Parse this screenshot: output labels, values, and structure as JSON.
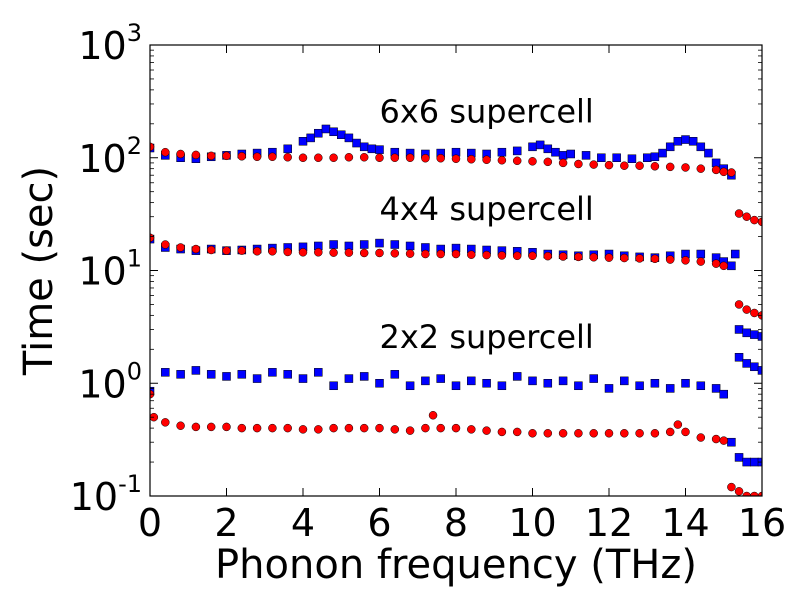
{
  "chart_data": {
    "type": "scatter",
    "title": "",
    "xlabel": "Phonon frequency (THz)",
    "ylabel": "Time (sec)",
    "xlim": [
      0,
      16
    ],
    "ylim": [
      0.1,
      1000
    ],
    "yscale": "log",
    "x_ticks": [
      0,
      2,
      4,
      6,
      8,
      10,
      12,
      14,
      16
    ],
    "x_tick_labels": [
      "0",
      "2",
      "4",
      "6",
      "8",
      "10",
      "12",
      "14",
      "16"
    ],
    "y_ticks": [
      0.1,
      1,
      10,
      100,
      1000
    ],
    "y_tick_labels": [
      {
        "base": "10",
        "exp": "-1"
      },
      {
        "base": "10",
        "exp": "0"
      },
      {
        "base": "10",
        "exp": "1"
      },
      {
        "base": "10",
        "exp": "2"
      },
      {
        "base": "10",
        "exp": "3"
      }
    ],
    "colors": {
      "blue": "#0000ff",
      "red": "#ff0000"
    },
    "annotations": [
      {
        "text": "6x6 supercell",
        "x": 6.0,
        "y": 160
      },
      {
        "text": "4x4 supercell",
        "x": 6.0,
        "y": 22
      },
      {
        "text": "2x2 supercell",
        "x": 6.0,
        "y": 1.6
      }
    ],
    "series": [
      {
        "name": "6x6 supercell (blue squares)",
        "color": "blue",
        "marker": "square",
        "x": [
          0.0,
          0.4,
          0.8,
          1.2,
          1.6,
          2.0,
          2.4,
          2.8,
          3.2,
          3.6,
          4.0,
          4.2,
          4.4,
          4.6,
          4.8,
          5.0,
          5.2,
          5.4,
          5.6,
          5.8,
          6.0,
          6.4,
          6.8,
          7.2,
          7.6,
          8.0,
          8.4,
          8.8,
          9.2,
          9.6,
          10.0,
          10.2,
          10.4,
          10.6,
          10.8,
          11.0,
          11.4,
          11.8,
          12.2,
          12.6,
          13.0,
          13.2,
          13.4,
          13.6,
          13.8,
          14.0,
          14.2,
          14.4,
          14.6,
          14.8,
          15.0,
          15.2,
          15.3,
          15.4,
          15.6,
          15.8,
          16.0
        ],
        "y": [
          122,
          105,
          100,
          98,
          102,
          105,
          108,
          110,
          112,
          120,
          140,
          150,
          165,
          180,
          170,
          160,
          150,
          135,
          125,
          120,
          118,
          112,
          110,
          108,
          110,
          112,
          110,
          108,
          112,
          115,
          125,
          130,
          120,
          112,
          105,
          108,
          105,
          100,
          100,
          98,
          100,
          102,
          110,
          125,
          140,
          145,
          140,
          125,
          110,
          90,
          80,
          70,
          14,
          1.7,
          1.5,
          1.4,
          1.3
        ]
      },
      {
        "name": "6x6 supercell (red circles)",
        "color": "red",
        "marker": "circle",
        "x": [
          0.0,
          0.4,
          0.8,
          1.2,
          1.6,
          2.0,
          2.4,
          2.8,
          3.2,
          3.6,
          4.0,
          4.4,
          4.8,
          5.2,
          5.6,
          6.0,
          6.4,
          6.8,
          7.2,
          7.6,
          8.0,
          8.4,
          8.8,
          9.2,
          9.6,
          10.0,
          10.4,
          10.8,
          11.2,
          11.6,
          12.0,
          12.4,
          12.8,
          13.2,
          13.6,
          14.0,
          14.4,
          14.8,
          15.0,
          15.2
        ],
        "y": [
          125,
          112,
          108,
          106,
          104,
          104,
          103,
          102,
          102,
          101,
          100,
          100,
          100,
          101,
          101,
          100,
          100,
          100,
          99,
          99,
          98,
          97,
          96,
          95,
          94,
          93,
          92,
          90,
          88,
          87,
          86,
          85,
          85,
          84,
          83,
          82,
          80,
          78,
          75,
          74
        ]
      },
      {
        "name": "4x4 supercell (blue squares)",
        "color": "blue",
        "marker": "square",
        "x": [
          0.0,
          0.4,
          0.8,
          1.2,
          1.6,
          2.0,
          2.4,
          2.8,
          3.2,
          3.6,
          4.0,
          4.4,
          4.8,
          5.2,
          5.6,
          6.0,
          6.4,
          6.8,
          7.2,
          7.6,
          8.0,
          8.4,
          8.8,
          9.2,
          9.6,
          10.0,
          10.4,
          10.8,
          11.2,
          11.6,
          12.0,
          12.4,
          12.8,
          13.2,
          13.6,
          14.0,
          14.4,
          14.8,
          15.0,
          15.2,
          15.4,
          15.6,
          15.8,
          16.0
        ],
        "y": [
          19,
          16,
          15.5,
          15,
          15.5,
          15,
          15.2,
          15.5,
          15.8,
          16,
          16.2,
          16.5,
          17,
          16.5,
          17,
          17.5,
          17,
          16.5,
          16,
          15.5,
          15.8,
          15.5,
          15.2,
          15,
          14.8,
          14.5,
          14,
          13.8,
          13.5,
          13.8,
          14,
          13.5,
          13.2,
          13,
          13.5,
          14,
          14,
          13,
          12,
          11,
          0.22,
          0.2,
          0.2,
          0.2
        ]
      },
      {
        "name": "4x4 supercell (red circles)",
        "color": "red",
        "marker": "circle",
        "x": [
          0.0,
          0.4,
          0.8,
          1.2,
          1.6,
          2.0,
          2.4,
          2.8,
          3.2,
          3.6,
          4.0,
          4.4,
          4.8,
          5.2,
          5.6,
          6.0,
          6.4,
          6.8,
          7.2,
          7.6,
          8.0,
          8.4,
          8.8,
          9.2,
          9.6,
          10.0,
          10.4,
          10.8,
          11.2,
          11.6,
          12.0,
          12.4,
          12.8,
          13.2,
          13.6,
          14.0,
          14.4,
          14.8,
          15.0
        ],
        "y": [
          19.5,
          17,
          16,
          15.5,
          15.2,
          15,
          15,
          14.8,
          14.8,
          14.6,
          14.5,
          14.5,
          14.4,
          14.4,
          14.3,
          14.3,
          14.2,
          14.1,
          14,
          14,
          14,
          13.8,
          13.7,
          13.6,
          13.5,
          13.5,
          13.4,
          13.3,
          13.2,
          13.1,
          13,
          12.9,
          12.8,
          12.7,
          12.5,
          12.3,
          12,
          11.5,
          11
        ]
      },
      {
        "name": "2x2 supercell (blue squares)",
        "color": "blue",
        "marker": "square",
        "x": [
          0.0,
          0.4,
          0.8,
          1.2,
          1.6,
          2.0,
          2.4,
          2.8,
          3.2,
          3.6,
          4.0,
          4.4,
          4.8,
          5.2,
          5.6,
          6.0,
          6.4,
          6.8,
          7.2,
          7.6,
          8.0,
          8.4,
          8.8,
          9.2,
          9.6,
          10.0,
          10.4,
          10.8,
          11.2,
          11.6,
          12.0,
          12.4,
          12.8,
          13.2,
          13.6,
          14.0,
          14.4,
          14.8,
          15.0,
          15.2,
          15.4,
          15.6,
          15.8,
          16.0
        ],
        "y": [
          0.85,
          1.25,
          1.2,
          1.3,
          1.2,
          1.15,
          1.2,
          1.1,
          1.25,
          1.2,
          1.1,
          1.25,
          0.95,
          1.1,
          1.15,
          1.0,
          1.2,
          0.95,
          1.05,
          1.1,
          0.95,
          1.05,
          1.0,
          0.95,
          1.15,
          1.05,
          1.0,
          1.05,
          0.95,
          1.1,
          0.9,
          1.05,
          0.95,
          1.0,
          0.9,
          1.0,
          0.95,
          0.9,
          0.8,
          0.3,
          3.0,
          2.8,
          2.7,
          2.6
        ]
      },
      {
        "name": "2x2 supercell (red circles)",
        "color": "red",
        "marker": "circle",
        "x": [
          0.0,
          0.1,
          0.4,
          0.8,
          1.2,
          1.6,
          2.0,
          2.4,
          2.8,
          3.2,
          3.6,
          4.0,
          4.4,
          4.8,
          5.2,
          5.6,
          6.0,
          6.4,
          6.8,
          7.2,
          7.4,
          7.6,
          8.0,
          8.4,
          8.8,
          9.2,
          9.6,
          10.0,
          10.4,
          10.8,
          11.2,
          11.6,
          12.0,
          12.4,
          12.8,
          13.2,
          13.6,
          13.8,
          14.0,
          14.4,
          14.8,
          15.0,
          15.2,
          15.4,
          15.6,
          15.8,
          16.0
        ],
        "y": [
          0.8,
          0.5,
          0.45,
          0.42,
          0.41,
          0.41,
          0.41,
          0.4,
          0.4,
          0.4,
          0.4,
          0.39,
          0.39,
          0.4,
          0.4,
          0.4,
          0.4,
          0.39,
          0.38,
          0.4,
          0.52,
          0.4,
          0.4,
          0.39,
          0.38,
          0.37,
          0.37,
          0.36,
          0.36,
          0.36,
          0.36,
          0.36,
          0.36,
          0.36,
          0.36,
          0.36,
          0.37,
          0.43,
          0.37,
          0.33,
          0.32,
          0.31,
          0.12,
          0.11,
          0.1,
          0.1,
          0.1
        ]
      },
      {
        "name": "tail red circles",
        "color": "red",
        "marker": "circle",
        "x": [
          15.4,
          15.6,
          15.8,
          16.0,
          15.4,
          15.6,
          15.8,
          16.0
        ],
        "y": [
          32,
          30,
          28,
          27,
          5.0,
          4.5,
          4.2,
          4.0
        ]
      }
    ]
  }
}
